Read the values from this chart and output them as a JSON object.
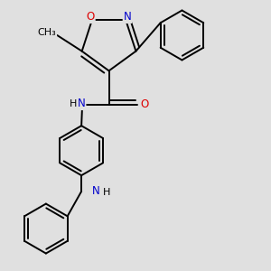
{
  "bg_color": "#e0e0e0",
  "bond_color": "#000000",
  "bond_width": 1.4,
  "atom_colors": {
    "O": "#dd0000",
    "N": "#0000cc",
    "C": "#000000"
  },
  "font_size": 8.5,
  "fig_size": [
    3.0,
    3.0
  ],
  "dpi": 100,
  "xlim": [
    0.0,
    3.0
  ],
  "ylim": [
    0.0,
    3.0
  ]
}
